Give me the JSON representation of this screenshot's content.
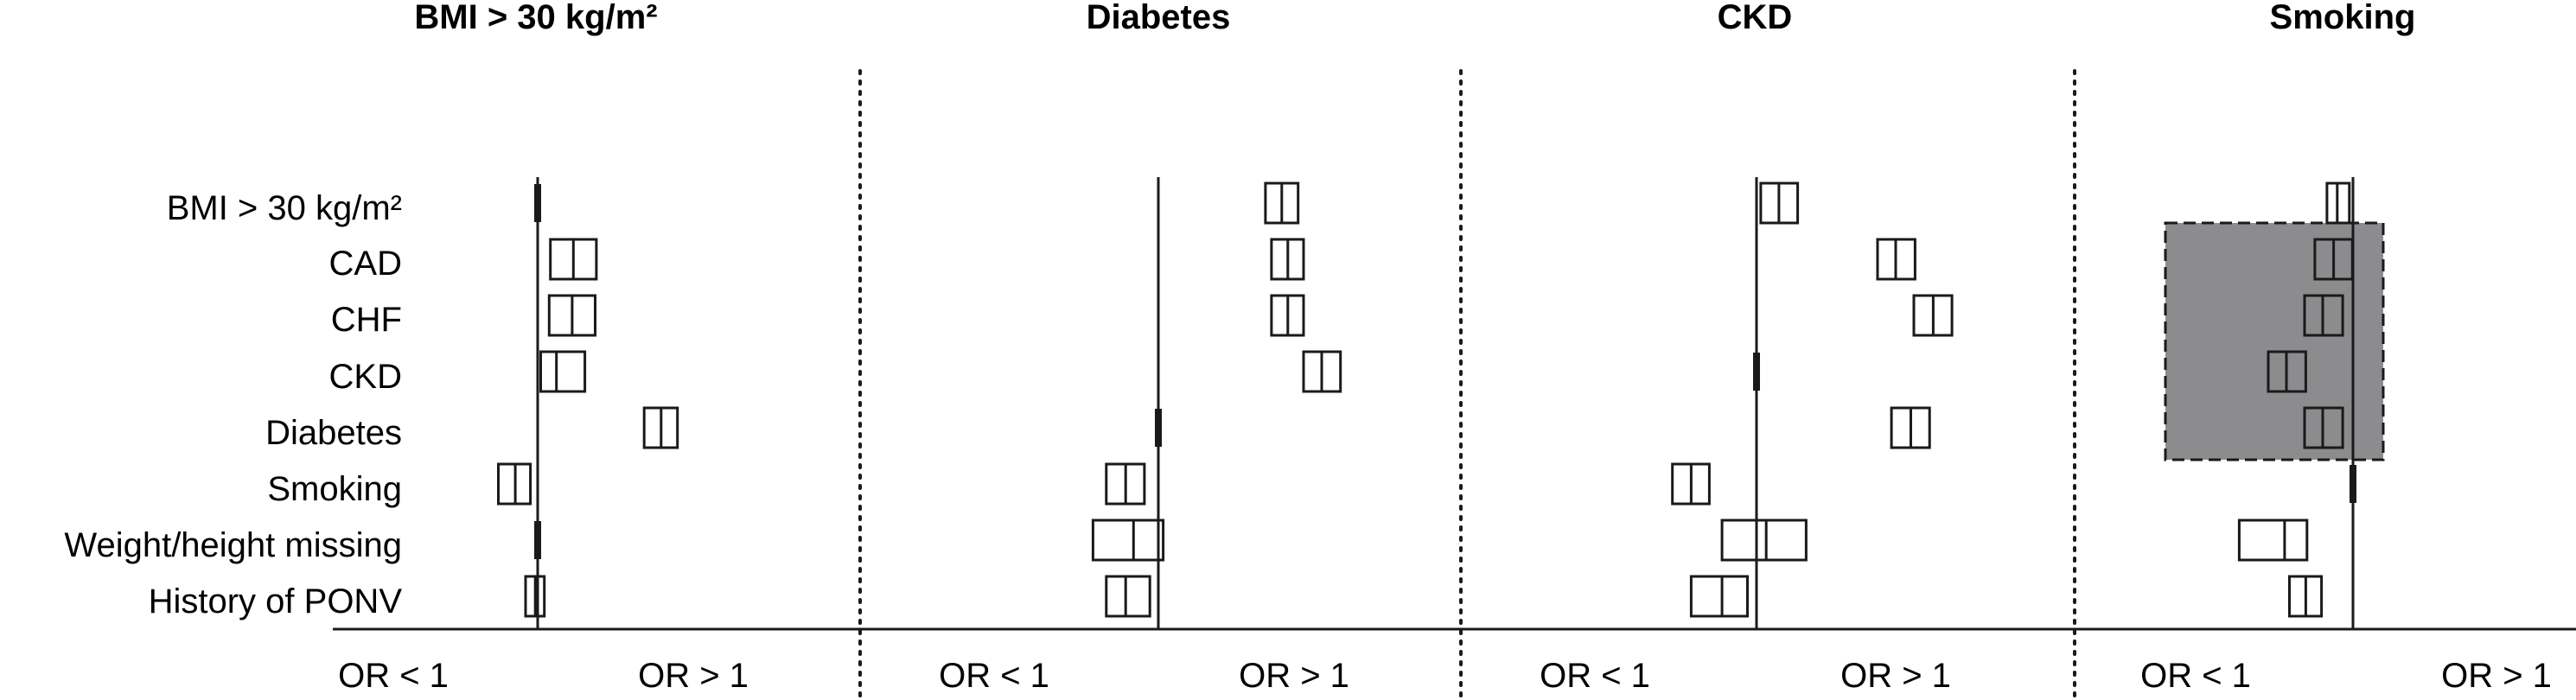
{
  "chart_data": {
    "type": "forest",
    "row_labels": [
      "BMI > 30 kg/m²",
      "CAD",
      "CHF",
      "CKD",
      "Diabetes",
      "Smoking",
      "Weight/height missing",
      "History of PONV"
    ],
    "axis_labels": {
      "left": "OR < 1",
      "right": "OR > 1"
    },
    "colors": {
      "box_stroke": "#1a1a1a",
      "highlight_fill": "#8c8c8e",
      "divider": "#1a1a1a"
    },
    "panels": [
      {
        "title": "BMI > 30 kg/m²",
        "rows": [
          {
            "label": "BMI > 30 kg/m²",
            "reference": true
          },
          {
            "label": "CAD",
            "lower": 0.21,
            "estimate": 0.59,
            "upper": 0.97
          },
          {
            "label": "CHF",
            "lower": 0.19,
            "estimate": 0.57,
            "upper": 0.95
          },
          {
            "label": "CKD",
            "lower": 0.05,
            "estimate": 0.31,
            "upper": 0.78
          },
          {
            "label": "Diabetes",
            "lower": 1.76,
            "estimate": 2.04,
            "upper": 2.31
          },
          {
            "label": "Smoking",
            "lower": -0.65,
            "estimate": -0.37,
            "upper": -0.12
          },
          {
            "label": "Weight/height missing",
            "reference": true
          },
          {
            "label": "History of PONV",
            "lower": -0.2,
            "estimate": -0.04,
            "upper": 0.11
          }
        ]
      },
      {
        "title": "Diabetes",
        "rows": [
          {
            "label": "BMI > 30 kg/m²",
            "lower": 1.77,
            "estimate": 2.04,
            "upper": 2.31
          },
          {
            "label": "CAD",
            "lower": 1.87,
            "estimate": 2.14,
            "upper": 2.4
          },
          {
            "label": "CHF",
            "lower": 1.87,
            "estimate": 2.14,
            "upper": 2.4
          },
          {
            "label": "CKD",
            "lower": 2.4,
            "estimate": 2.7,
            "upper": 3.01
          },
          {
            "label": "Diabetes",
            "reference": true
          },
          {
            "label": "Smoking",
            "lower": -0.86,
            "estimate": -0.54,
            "upper": -0.23
          },
          {
            "label": "Weight/height missing",
            "lower": -1.08,
            "estimate": -0.41,
            "upper": 0.08
          },
          {
            "label": "History of PONV",
            "lower": -0.86,
            "estimate": -0.54,
            "upper": -0.14
          }
        ]
      },
      {
        "title": "CKD",
        "rows": [
          {
            "label": "BMI > 30 kg/m²",
            "lower": 0.07,
            "estimate": 0.37,
            "upper": 0.68
          },
          {
            "label": "CAD",
            "lower": 2.0,
            "estimate": 2.3,
            "upper": 2.62
          },
          {
            "label": "CHF",
            "lower": 2.6,
            "estimate": 2.92,
            "upper": 3.23
          },
          {
            "label": "CKD",
            "reference": true
          },
          {
            "label": "Diabetes",
            "lower": 2.23,
            "estimate": 2.55,
            "upper": 2.86
          },
          {
            "label": "Smoking",
            "lower": -1.39,
            "estimate": -1.08,
            "upper": -0.78
          },
          {
            "label": "Weight/height missing",
            "lower": -0.57,
            "estimate": 0.16,
            "upper": 0.82
          },
          {
            "label": "History of PONV",
            "lower": -1.08,
            "estimate": -0.57,
            "upper": -0.15
          }
        ]
      },
      {
        "title": "Smoking",
        "highlight_rows": [
          "CAD",
          "Diabetes"
        ],
        "rows": [
          {
            "label": "BMI > 30 kg/m²",
            "lower": -0.43,
            "estimate": -0.26,
            "upper": -0.06
          },
          {
            "label": "CAD",
            "lower": -0.63,
            "estimate": -0.32,
            "upper": -0.01
          },
          {
            "label": "CHF",
            "lower": -0.8,
            "estimate": -0.5,
            "upper": -0.17
          },
          {
            "label": "CKD",
            "lower": -1.4,
            "estimate": -1.1,
            "upper": -0.78
          },
          {
            "label": "Diabetes",
            "lower": -0.8,
            "estimate": -0.5,
            "upper": -0.17
          },
          {
            "label": "Smoking",
            "reference": true
          },
          {
            "label": "Weight/height missing",
            "lower": -1.88,
            "estimate": -1.13,
            "upper": -0.76
          },
          {
            "label": "History of PONV",
            "lower": -1.05,
            "estimate": -0.78,
            "upper": -0.52
          }
        ]
      }
    ]
  }
}
